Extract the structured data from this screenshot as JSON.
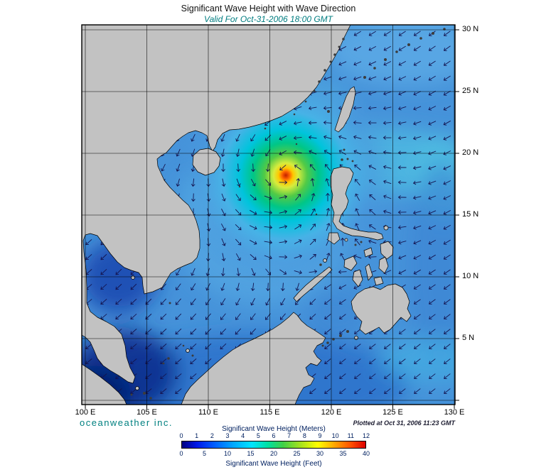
{
  "header": {
    "title": "Significant Wave Height with Wave Direction",
    "subtitle": "Valid For Oct-31-2006 18:00 GMT"
  },
  "footer": {
    "brand": "oceanweather inc.",
    "plotted": "Plotted at Oct 31, 2006 11:23 GMT"
  },
  "axes": {
    "lon_ticks": [
      "100 E",
      "105 E",
      "110 E",
      "115 E",
      "120 E",
      "125 E",
      "130 E"
    ],
    "lat_ticks": [
      "30 N",
      "25 N",
      "20 N",
      "15 N",
      "10 N",
      "5 N"
    ]
  },
  "legend": {
    "meters_label": "Significant Wave Height (Meters)",
    "feet_label": "Significant Wave Height (Feet)",
    "meters_ticks": [
      "0",
      "1",
      "2",
      "3",
      "4",
      "5",
      "6",
      "7",
      "8",
      "9",
      "10",
      "11",
      "12"
    ],
    "feet_ticks": [
      "0",
      "5",
      "10",
      "15",
      "20",
      "25",
      "30",
      "35",
      "40"
    ],
    "colorbar": {
      "colors": [
        "#000080",
        "#0018e8",
        "#0060ff",
        "#00a8ff",
        "#00e4ff",
        "#00e0a0",
        "#40d048",
        "#a0e020",
        "#ffff00",
        "#ffa800",
        "#ff5000",
        "#dc0000"
      ],
      "positions": [
        0,
        8,
        18,
        28,
        38,
        47,
        55,
        64,
        74,
        83,
        92,
        100
      ]
    }
  },
  "chart_data": {
    "type": "heatmap",
    "title": "Significant Wave Height with Wave Direction",
    "valid_time": "Oct-31-2006 18:00 GMT",
    "plotted_time": "Oct 31, 2006 11:23 GMT",
    "region": "South China Sea and Philippine Sea",
    "lon_range_deg_e": [
      100,
      130
    ],
    "lat_range_deg_n": [
      0,
      30
    ],
    "grid_interval_deg": 5,
    "colorbar_range_meters": [
      0,
      12
    ],
    "colorbar_range_feet": [
      0,
      40
    ],
    "storm": {
      "center_lon_e": 116.3,
      "center_lat_n": 18.2,
      "peak_wave_height_m": 11,
      "rotation": "counterclockwise"
    },
    "representative_heights_m": {
      "storm_core": 11,
      "storm_green_ring": 6,
      "storm_cyan_ring": 4.5,
      "central_south_china_sea": 3,
      "philippine_sea": 2.5,
      "gulf_of_thailand": 1,
      "southwest_karimata_area": 0.5
    },
    "vector_overlay": "wave-direction arrows"
  }
}
